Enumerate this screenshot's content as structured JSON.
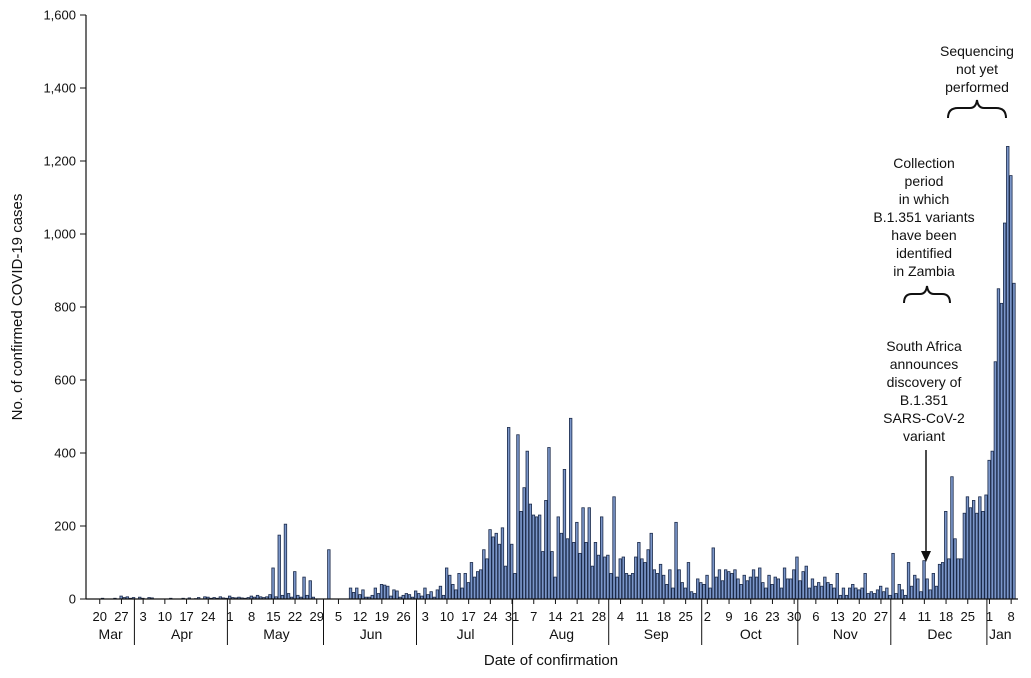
{
  "chart_data": {
    "type": "bar",
    "xlabel": "Date of confirmation",
    "ylabel": "No. of confirmed COVID-19 cases",
    "ylim": [
      0,
      1600
    ],
    "yticks": [
      "0",
      "200",
      "400",
      "600",
      "800",
      "1,000",
      "1,200",
      "1,400",
      "1,600"
    ],
    "grid": false,
    "start_date": "2020-03-18",
    "months": [
      {
        "name": "Mar",
        "days": [
          "20",
          "27"
        ]
      },
      {
        "name": "Apr",
        "days": [
          "3",
          "10",
          "17",
          "24"
        ]
      },
      {
        "name": "May",
        "days": [
          "1",
          "8",
          "15",
          "22",
          "29"
        ]
      },
      {
        "name": "Jun",
        "days": [
          "5",
          "12",
          "19",
          "26"
        ]
      },
      {
        "name": "Jul",
        "days": [
          "3",
          "10",
          "17",
          "24",
          "31"
        ]
      },
      {
        "name": "Aug",
        "days": [
          "7",
          "14",
          "21",
          "28"
        ]
      },
      {
        "name": "Sep",
        "days": [
          "4",
          "11",
          "18",
          "25"
        ]
      },
      {
        "name": "Oct",
        "days": [
          "2",
          "9",
          "16",
          "23",
          "30"
        ]
      },
      {
        "name": "Nov",
        "days": [
          "6",
          "13",
          "20",
          "27"
        ]
      },
      {
        "name": "Dec",
        "days": [
          "4",
          "11",
          "18",
          "25"
        ]
      },
      {
        "name": "Jan",
        "days": [
          "1",
          "8"
        ]
      }
    ],
    "values": [
      0,
      0,
      0,
      2,
      0,
      0,
      0,
      2,
      0,
      8,
      4,
      6,
      2,
      4,
      0,
      5,
      2,
      0,
      4,
      3,
      0,
      0,
      0,
      0,
      0,
      2,
      0,
      0,
      0,
      2,
      0,
      3,
      0,
      1,
      4,
      0,
      6,
      5,
      2,
      4,
      2,
      6,
      3,
      2,
      8,
      4,
      3,
      5,
      3,
      2,
      4,
      8,
      5,
      10,
      6,
      4,
      6,
      12,
      85,
      6,
      175,
      10,
      205,
      15,
      5,
      75,
      10,
      5,
      60,
      10,
      50,
      5,
      0,
      0,
      0,
      0,
      135,
      0,
      0,
      0,
      0,
      0,
      0,
      30,
      18,
      30,
      12,
      25,
      5,
      5,
      10,
      30,
      15,
      40,
      38,
      35,
      8,
      25,
      22,
      5,
      10,
      15,
      12,
      5,
      22,
      15,
      8,
      30,
      12,
      20,
      5,
      25,
      35,
      10,
      85,
      65,
      40,
      25,
      70,
      30,
      70,
      45,
      100,
      60,
      75,
      80,
      135,
      110,
      190,
      170,
      180,
      150,
      195,
      90,
      470,
      150,
      70,
      450,
      240,
      305,
      405,
      260,
      230,
      225,
      230,
      130,
      270,
      415,
      130,
      60,
      225,
      180,
      355,
      165,
      495,
      155,
      210,
      125,
      250,
      155,
      250,
      90,
      155,
      120,
      225,
      115,
      120,
      70,
      280,
      60,
      110,
      115,
      70,
      65,
      70,
      115,
      155,
      110,
      100,
      135,
      180,
      80,
      70,
      95,
      65,
      40,
      80,
      30,
      210,
      80,
      45,
      30,
      100,
      20,
      15,
      55,
      45,
      40,
      65,
      30,
      140,
      60,
      80,
      50,
      80,
      75,
      70,
      80,
      55,
      40,
      65,
      50,
      60,
      80,
      60,
      85,
      45,
      30,
      65,
      40,
      60,
      55,
      30,
      85,
      55,
      55,
      80,
      115,
      50,
      75,
      90,
      30,
      55,
      35,
      45,
      35,
      60,
      45,
      40,
      30,
      70,
      10,
      30,
      10,
      30,
      40,
      30,
      25,
      30,
      70,
      15,
      20,
      15,
      25,
      35,
      20,
      30,
      10,
      125,
      15,
      40,
      25,
      10,
      100,
      35,
      65,
      55,
      20,
      105,
      55,
      25,
      70,
      35,
      95,
      100,
      240,
      110,
      335,
      165,
      110,
      110,
      235,
      280,
      250,
      270,
      235,
      280,
      240,
      285,
      380,
      405,
      650,
      850,
      810,
      1030,
      1240,
      1160,
      865
    ]
  },
  "annotations": {
    "sequencing": [
      "Sequencing",
      "not yet",
      "performed"
    ],
    "collection": [
      "Collection",
      "period",
      "in which",
      "B.1.351 variants",
      "have been",
      "identified",
      "in Zambia"
    ],
    "south_africa": [
      "South Africa",
      "announces",
      "discovery of",
      "B.1.351",
      "SARS-CoV-2",
      "variant"
    ]
  }
}
